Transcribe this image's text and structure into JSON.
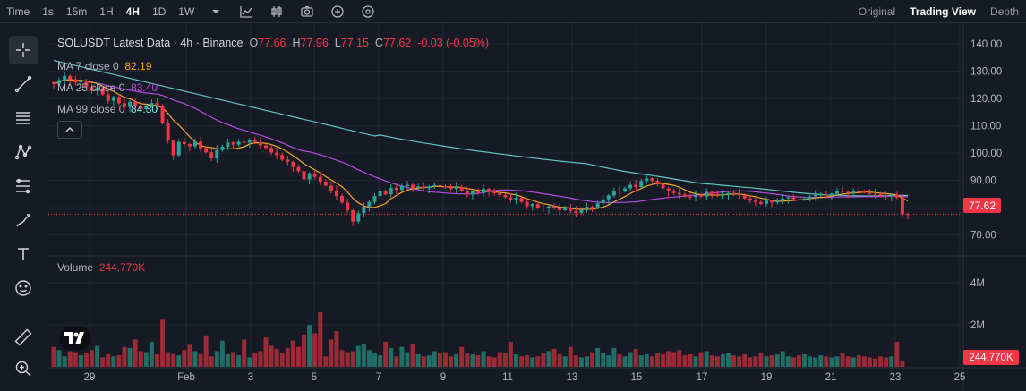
{
  "toolbar": {
    "time_label": "Time",
    "intervals": [
      "1s",
      "15m",
      "1H",
      "4H",
      "1D",
      "1W"
    ],
    "active_interval": "4H",
    "views": [
      "Original",
      "Trading View",
      "Depth"
    ],
    "active_view": "Trading View"
  },
  "legend": {
    "title": "SOLUSDT Latest Data · 4h · Binance",
    "open_label": "O",
    "open": "77.66",
    "high_label": "H",
    "high": "77.96",
    "low_label": "L",
    "low": "77.15",
    "close_label": "C",
    "close": "77.62",
    "change": "-0.03 (-0.05%)",
    "ma7_label": "MA 7 close 0",
    "ma7_value": "82.19",
    "ma25_label": "MA 25 close 0",
    "ma25_value": "83.40",
    "ma99_label": "MA 99 close 0",
    "ma99_value": "84.30",
    "volume_label": "Volume",
    "volume_value": "244.770K"
  },
  "price_tag": "77.62",
  "volume_tag": "244.770K",
  "colors": {
    "background": "#161a25",
    "up": "#26a69a",
    "down": "#f23645",
    "ma7": "#f5a623",
    "ma25": "#b44ce0",
    "ma99": "#5ec4c4",
    "grid": "#232733"
  },
  "chart_data": {
    "type": "candlestick",
    "title": "SOLUSDT Latest Data · 4h · Binance",
    "y_ticks": [
      "140.00",
      "130.00",
      "120.00",
      "110.00",
      "100.00",
      "90.00",
      "80.00",
      "70.00"
    ],
    "ylim": [
      63,
      143
    ],
    "volume_ticks": [
      "4M",
      "2M"
    ],
    "x_ticks": [
      "29",
      "Feb",
      "3",
      "5",
      "7",
      "9",
      "11",
      "13",
      "15",
      "17",
      "19",
      "21",
      "23",
      "25"
    ],
    "close_series": [
      125.4,
      126.8,
      128.3,
      127.1,
      125.9,
      126.5,
      124.2,
      122.8,
      123.9,
      121.5,
      119.2,
      120.6,
      118.3,
      116.9,
      118.8,
      117.2,
      116.1,
      117.5,
      118.4,
      117.2,
      111.0,
      104.6,
      99.2,
      104.1,
      103.3,
      102.5,
      104.2,
      101.8,
      100.3,
      98.1,
      101.1,
      102.3,
      103.9,
      103.1,
      104.2,
      103.8,
      104.9,
      104.1,
      102.8,
      101.9,
      100.2,
      99.3,
      97.6,
      96.8,
      94.9,
      93.4,
      90.4,
      92.6,
      91.3,
      89.6,
      88.1,
      86.2,
      84.3,
      81.9,
      79.1,
      74.9,
      78.0,
      80.4,
      82.1,
      84.3,
      86.1,
      84.9,
      87.3,
      86.5,
      87.9,
      88.4,
      87.3,
      87.8,
      87.1,
      87.8,
      88.3,
      87.9,
      87.4,
      86.9,
      87.6,
      86.3,
      84.8,
      86.1,
      85.4,
      86.9,
      86.0,
      85.3,
      84.6,
      83.8,
      82.9,
      83.6,
      82.1,
      80.6,
      81.3,
      80.0,
      79.8,
      80.5,
      80.0,
      79.1,
      80.1,
      78.8,
      78.1,
      79.3,
      80.4,
      80.1,
      81.6,
      83.1,
      84.5,
      86.2,
      85.9,
      87.1,
      88.4,
      87.6,
      89.8,
      90.8,
      89.9,
      88.6,
      87.1,
      86.0,
      85.4,
      84.8,
      84.1,
      83.9,
      84.6,
      84.1,
      85.8,
      85.1,
      84.6,
      84.9,
      85.4,
      85.1,
      84.6,
      83.4,
      82.6,
      82.1,
      81.4,
      82.6,
      81.9,
      82.6,
      83.4,
      83.8,
      83.1,
      82.9,
      83.3,
      84.1,
      84.6,
      84.8,
      84.6,
      85.1,
      86.2,
      85.8,
      85.4,
      86.1,
      85.9,
      85.6,
      85.1,
      84.9,
      84.4,
      84.1,
      84.8,
      83.8,
      77.66,
      77.62
    ],
    "ma7_last": 82.19,
    "ma25_last": 83.4,
    "ma99_last": 84.3,
    "last_price": 77.62,
    "last_volume": "244.770K",
    "volume_series": [
      0.95,
      0.8,
      0.5,
      0.75,
      0.7,
      0.55,
      0.65,
      0.8,
      1.0,
      0.45,
      0.6,
      0.5,
      0.55,
      0.95,
      0.9,
      1.3,
      0.75,
      0.7,
      1.2,
      0.6,
      2.25,
      0.7,
      0.6,
      0.55,
      0.8,
      1.05,
      0.75,
      0.6,
      1.5,
      0.5,
      0.75,
      1.25,
      0.6,
      0.7,
      0.55,
      1.3,
      0.45,
      0.65,
      0.75,
      1.4,
      1.0,
      0.85,
      0.65,
      0.9,
      1.25,
      0.95,
      1.55,
      2.0,
      1.6,
      2.6,
      0.5,
      1.3,
      1.7,
      0.8,
      0.7,
      0.75,
      1.0,
      1.1,
      0.8,
      0.65,
      0.55,
      1.2,
      0.9,
      0.5,
      0.95,
      0.7,
      1.1,
      0.6,
      0.5,
      0.55,
      0.75,
      0.65,
      0.7,
      0.5,
      0.6,
      0.95,
      0.65,
      0.6,
      0.55,
      0.75,
      0.5,
      0.45,
      0.7,
      0.65,
      1.2,
      0.6,
      0.5,
      0.55,
      0.45,
      0.5,
      0.65,
      0.75,
      0.85,
      0.6,
      0.5,
      0.95,
      0.55,
      0.45,
      0.5,
      0.7,
      0.9,
      0.65,
      0.55,
      0.9,
      0.6,
      0.5,
      0.7,
      0.85,
      0.55,
      0.6,
      0.5,
      0.65,
      0.6,
      0.75,
      0.7,
      0.8,
      0.55,
      0.6,
      0.5,
      0.7,
      0.75,
      0.55,
      0.5,
      0.6,
      0.65,
      0.55,
      0.5,
      0.6,
      0.45,
      0.5,
      0.65,
      0.5,
      0.55,
      0.6,
      0.75,
      0.5,
      0.45,
      0.55,
      0.6,
      0.5,
      0.45,
      0.55,
      0.5,
      0.45,
      0.5,
      0.65,
      0.5,
      0.45,
      0.55,
      0.5,
      0.45,
      0.4,
      0.5,
      0.45,
      0.5,
      1.2,
      0.25
    ]
  }
}
